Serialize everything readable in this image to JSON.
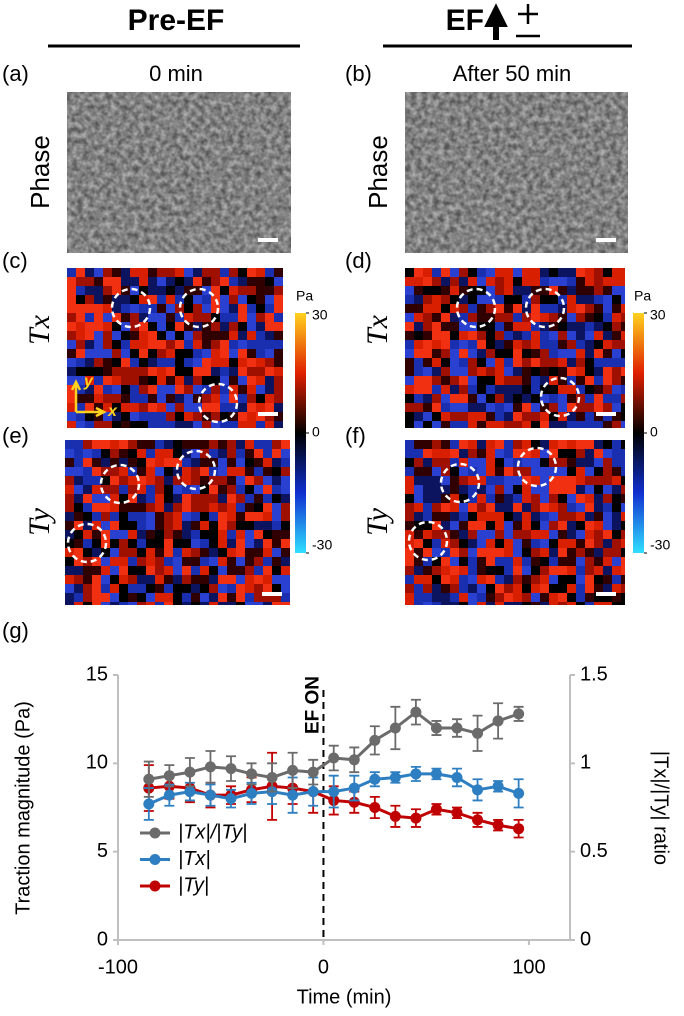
{
  "figure": {
    "columns": [
      {
        "title": "Pre-EF",
        "time": "0 min"
      },
      {
        "title": "EF",
        "time": "After 50 min"
      }
    ],
    "panels": [
      {
        "label": "(a)",
        "row_label": "Phase"
      },
      {
        "label": "(b)",
        "row_label": "Phase"
      },
      {
        "label": "(c)",
        "row_label": "Tx"
      },
      {
        "label": "(d)",
        "row_label": "Tx"
      },
      {
        "label": "(e)",
        "row_label": "Ty"
      },
      {
        "label": "(f)",
        "row_label": "Ty"
      }
    ],
    "colorbar": {
      "unit": "Pa",
      "ticks": [
        30,
        0,
        -30
      ]
    },
    "axis_glyphs": [
      "y",
      "x"
    ]
  },
  "chart_data": {
    "type": "line",
    "panel_label": "(g)",
    "x_label": "Time (min)",
    "y_label": "Traction magnitude (Pa)",
    "y2_label": "|Tx|/|Ty| ratio",
    "annotations": [
      {
        "text": "EF ON",
        "x": 0
      }
    ],
    "x": [
      -85,
      -75,
      -65,
      -55,
      -45,
      -35,
      -25,
      -15,
      -5,
      5,
      15,
      25,
      35,
      45,
      55,
      65,
      75,
      85,
      95
    ],
    "xlim": [
      -100,
      120
    ],
    "xticks": [
      -100,
      0,
      100
    ],
    "ylim": [
      0,
      15
    ],
    "yticks": [
      0,
      5,
      10,
      15
    ],
    "y2lim": [
      0,
      1.5
    ],
    "y2ticks": [
      0,
      0.5,
      1,
      1.5
    ],
    "legend": "lower-left",
    "series": [
      {
        "name": "|Tx|/|Ty|",
        "color": "#6b6b6b",
        "axis": "y2",
        "values": [
          0.91,
          0.93,
          0.95,
          0.98,
          0.97,
          0.94,
          0.92,
          0.96,
          0.95,
          1.03,
          1.02,
          1.13,
          1.2,
          1.29,
          1.2,
          1.2,
          1.17,
          1.24,
          1.28
        ],
        "errors": [
          0.1,
          0.06,
          0.08,
          0.09,
          0.07,
          0.06,
          0.08,
          0.1,
          0.07,
          0.07,
          0.07,
          0.08,
          0.12,
          0.07,
          0.04,
          0.05,
          0.1,
          0.1,
          0.04
        ]
      },
      {
        "name": "|Tx|",
        "color": "#2e7fc1",
        "values": [
          7.7,
          8.2,
          8.4,
          8.2,
          8.0,
          8.3,
          8.4,
          8.2,
          8.4,
          8.4,
          8.6,
          9.1,
          9.2,
          9.4,
          9.4,
          9.2,
          8.5,
          8.7,
          8.3
        ],
        "errors": [
          0.9,
          0.6,
          0.5,
          0.6,
          0.5,
          0.6,
          0.7,
          1.0,
          0.8,
          0.9,
          0.7,
          0.4,
          0.3,
          0.4,
          0.3,
          0.5,
          0.6,
          0.3,
          0.8
        ]
      },
      {
        "name": "|Ty|",
        "color": "#c00000",
        "values": [
          8.6,
          8.7,
          8.6,
          8.2,
          8.2,
          8.5,
          8.7,
          8.6,
          8.4,
          7.9,
          7.8,
          7.5,
          7.0,
          6.9,
          7.4,
          7.2,
          6.8,
          6.5,
          6.3
        ],
        "errors": [
          1.3,
          0.7,
          0.8,
          0.7,
          0.5,
          0.7,
          1.9,
          0.9,
          1.2,
          0.8,
          0.6,
          0.6,
          0.6,
          0.5,
          0.3,
          0.3,
          0.4,
          0.3,
          0.5
        ]
      }
    ]
  }
}
